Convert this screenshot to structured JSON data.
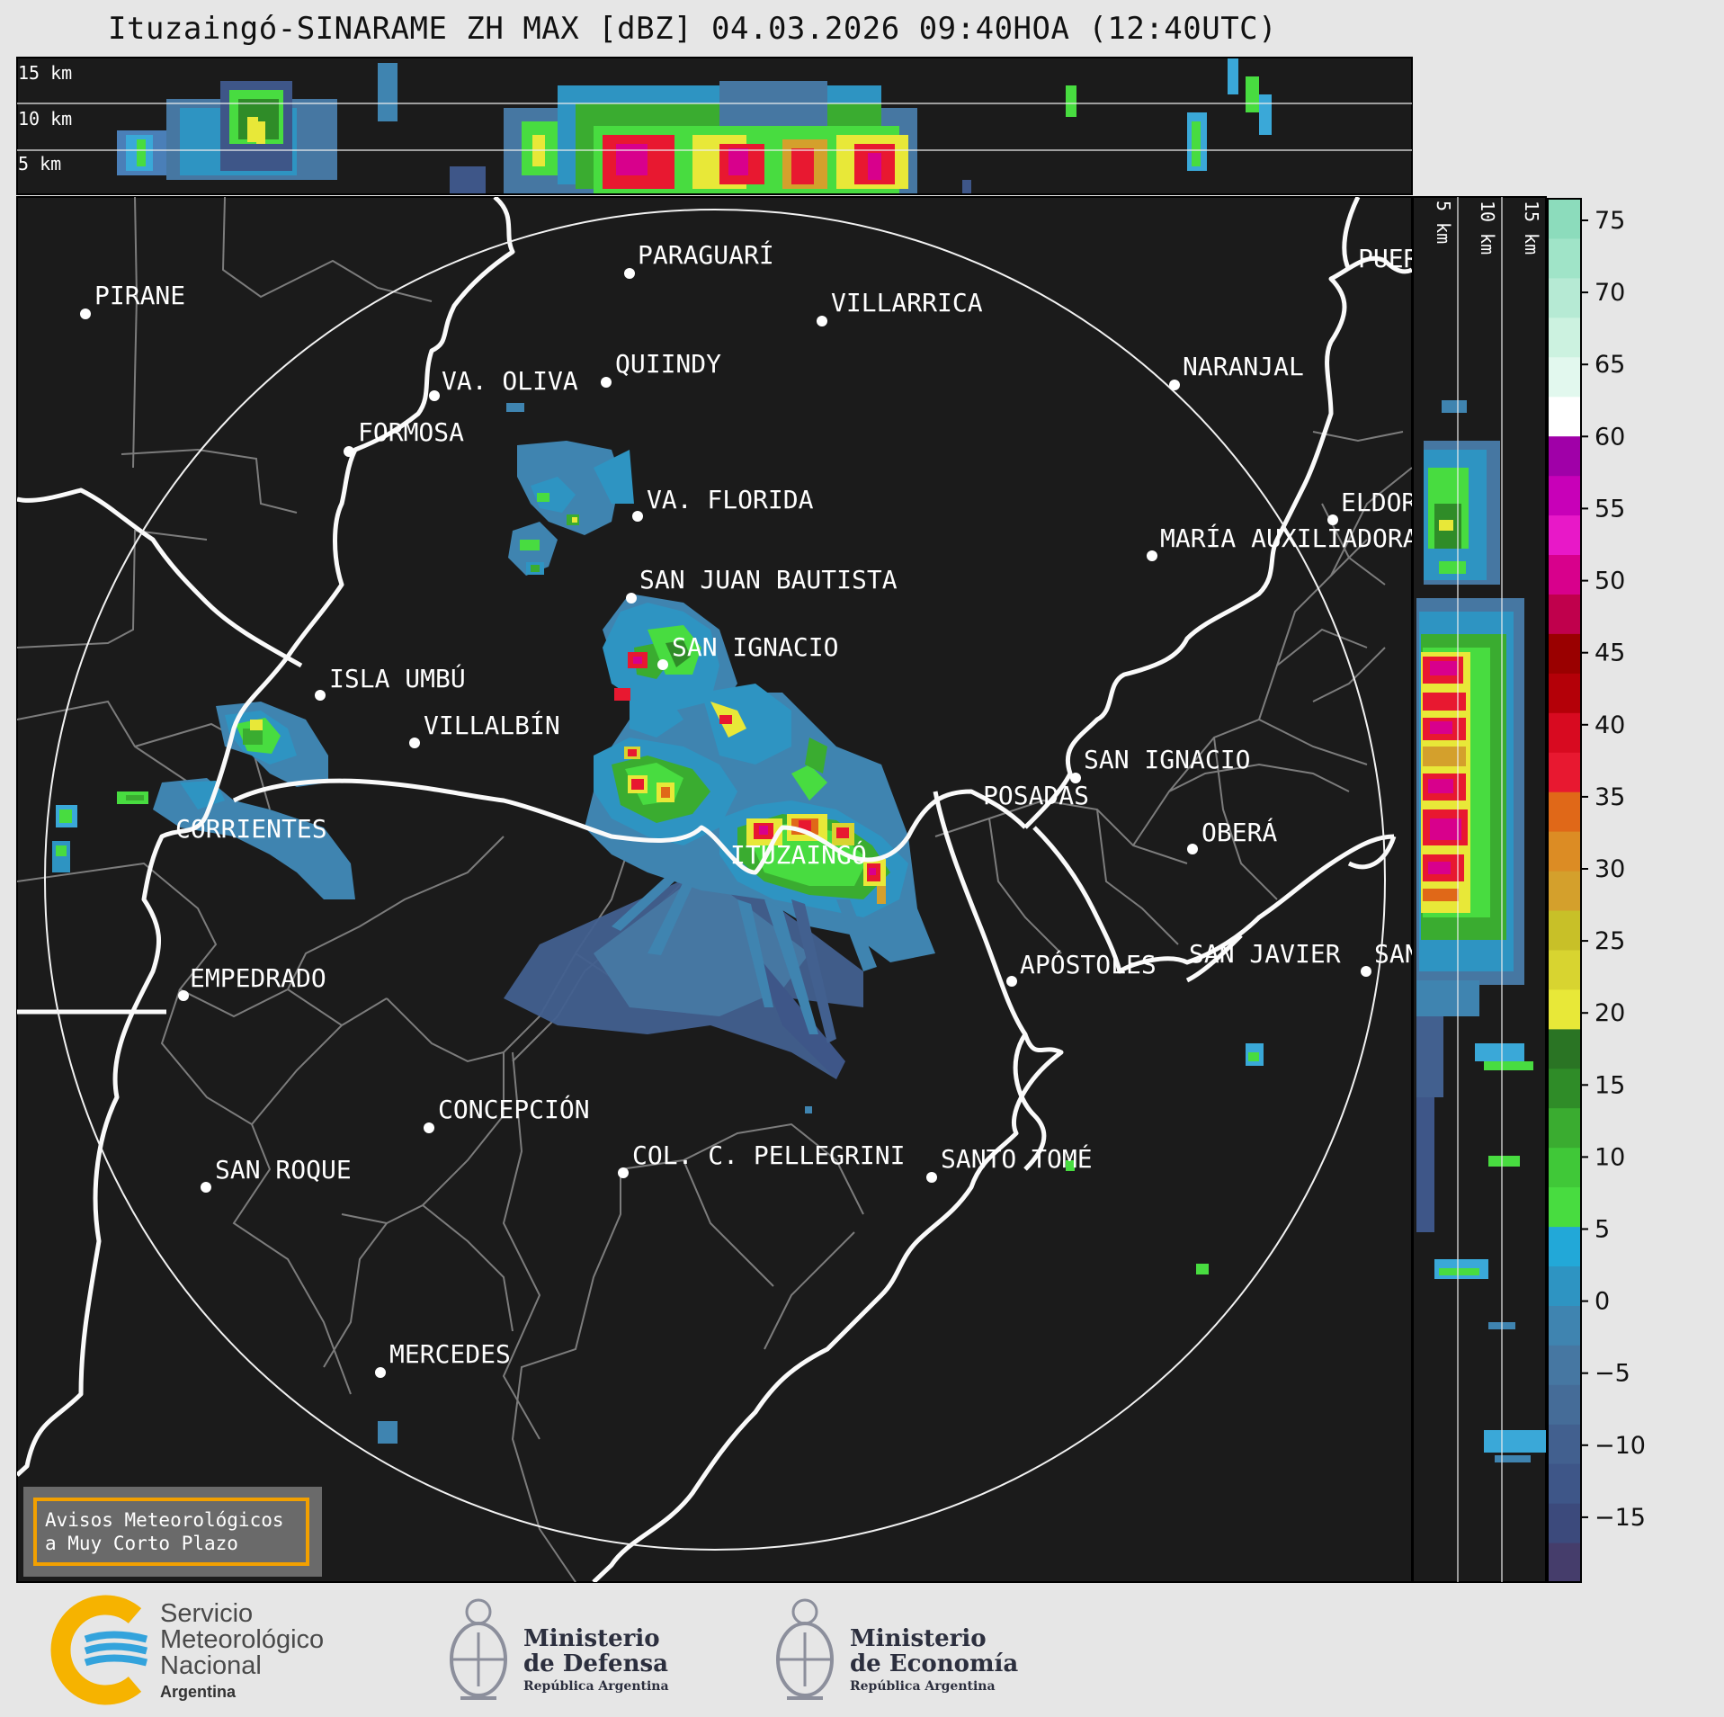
{
  "header": {
    "title": "Ituzaingó-SINARAME ZH MAX [dBZ] 04.03.2026 09:40HOA (12:40UTC)"
  },
  "top_profile": {
    "height_labels": [
      "15 km",
      "10 km",
      "5 km"
    ]
  },
  "side_profile": {
    "height_labels": [
      "5 km",
      "10 km",
      "15 km"
    ]
  },
  "colorbar": {
    "unit": "dBZ",
    "ticks": [
      "75",
      "70",
      "65",
      "60",
      "55",
      "50",
      "45",
      "40",
      "35",
      "30",
      "25",
      "20",
      "15",
      "10",
      "5",
      "0",
      "−5",
      "−10",
      "−15"
    ],
    "colors": [
      "#453d6b",
      "#3c4a7c",
      "#3e5688",
      "#42608f",
      "#456c98",
      "#4677a2",
      "#3f84b0",
      "#2e94c2",
      "#22a8d8",
      "#48dc40",
      "#40c838",
      "#3aac30",
      "#2f8c28",
      "#2a7424",
      "#e8e838",
      "#d8d430",
      "#c8c028",
      "#d4a02c",
      "#dc8c24",
      "#e06818",
      "#e81830",
      "#d80a20",
      "#b40008",
      "#9a0000",
      "#c0004c",
      "#d8008c",
      "#e818c8",
      "#c800b8",
      "#a000a8",
      "#ffffff",
      "#e2f8ee",
      "#ccf2e0",
      "#b6ead4",
      "#a0e4c8",
      "#8cdcbc"
    ]
  },
  "radar": {
    "name": "ITUZAINGÓ"
  },
  "places": [
    {
      "name": "PIRANE"
    },
    {
      "name": "PARAGUARÍ"
    },
    {
      "name": "VILLARRICA"
    },
    {
      "name": "QUIINDY"
    },
    {
      "name": "VA. OLIVA"
    },
    {
      "name": "FORMOSA"
    },
    {
      "name": "NARANJAL"
    },
    {
      "name": "VA. FLORIDA"
    },
    {
      "name": "ELDORADO"
    },
    {
      "name": "MARÍA AUXILIADORA"
    },
    {
      "name": "SAN JUAN BAUTISTA"
    },
    {
      "name": "SAN IGNACIO"
    },
    {
      "name": "ISLA UMBÚ"
    },
    {
      "name": "VILLALBÍN"
    },
    {
      "name": "SAN IGNACIO"
    },
    {
      "name": "POSADAS"
    },
    {
      "name": "OBERÁ"
    },
    {
      "name": "CORRIENTES"
    },
    {
      "name": "EMPEDRADO"
    },
    {
      "name": "APÓSTOLES"
    },
    {
      "name": "SAN JAVIER"
    },
    {
      "name": "SAN VICENTE"
    },
    {
      "name": "CONCEPCIÓN"
    },
    {
      "name": "COL. C. PELLEGRINI"
    },
    {
      "name": "SANTO TOMÉ"
    },
    {
      "name": "SAN ROQUE"
    },
    {
      "name": "MERCEDES"
    },
    {
      "name": "PUERTO IGUAZÚ"
    }
  ],
  "warning_box": {
    "line1": "Avisos Meteorológicos",
    "line2": "a Muy Corto Plazo"
  },
  "footer": {
    "smn_line1": "Servicio",
    "smn_line2": "Meteorológico",
    "smn_line3": "Nacional",
    "smn_country": "Argentina",
    "defensa_title1": "Ministerio",
    "defensa_title2": "de Defensa",
    "defensa_sub": "República Argentina",
    "economia_title1": "Ministerio",
    "economia_title2": "de Economía",
    "economia_sub": "República Argentina"
  }
}
